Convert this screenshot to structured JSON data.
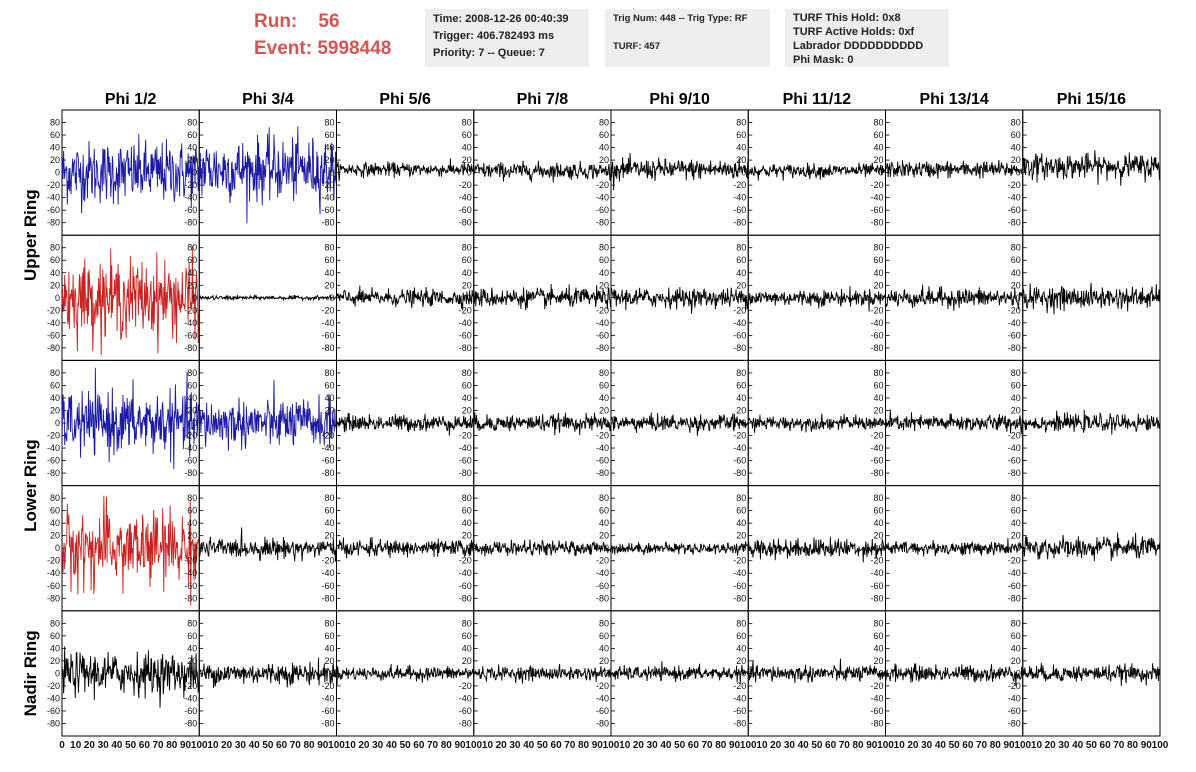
{
  "header": {
    "run_label": "Run:",
    "run_value": "56",
    "event_label": "Event:",
    "event_value": "5998448",
    "time": "Time: 2008-12-26 00:40:39",
    "trigger": "Trigger: 406.782493 ms",
    "priority": "Priority: 7 -- Queue: 7",
    "trig_num": "Trig Num: 448 -- Trig Type: RF",
    "turf": "TURF: 457",
    "turf_hold": "TURF This Hold: 0x8",
    "turf_active": "TURF Active Holds: 0xf",
    "labrador": "Labrador DDDDDDDDDD",
    "phi_mask": "Phi Mask: 0"
  },
  "colors": {
    "blue": "#1a1aa6",
    "red": "#cc2020",
    "black": "#000000",
    "accent_text": "#d9534f"
  },
  "chart_data": {
    "type": "line",
    "columns": [
      "Phi 1/2",
      "Phi 3/4",
      "Phi 5/6",
      "Phi 7/8",
      "Phi 9/10",
      "Phi 11/12",
      "Phi 13/14",
      "Phi 15/16"
    ],
    "ring_labels": [
      "Upper Ring",
      "Lower Ring",
      "Nadir Ring"
    ],
    "ring_rows": [
      [
        0,
        1
      ],
      [
        2,
        3
      ],
      [
        4
      ]
    ],
    "ylim": [
      -100,
      100
    ],
    "yticks": [
      80,
      60,
      40,
      20,
      0,
      -20,
      -40,
      -60,
      -80
    ],
    "xlim": [
      0,
      100
    ],
    "xticks": [
      10,
      20,
      30,
      40,
      50,
      60,
      70,
      80,
      90,
      100
    ],
    "first_xtick_label": "0",
    "panel_colors": [
      [
        "blue",
        "blue",
        "black",
        "black",
        "black",
        "black",
        "black",
        "black"
      ],
      [
        "red",
        "black",
        "black",
        "black",
        "black",
        "black",
        "black",
        "black"
      ],
      [
        "blue",
        "blue",
        "black",
        "black",
        "black",
        "black",
        "black",
        "black"
      ],
      [
        "red",
        "black",
        "black",
        "black",
        "black",
        "black",
        "black",
        "black"
      ],
      [
        "black",
        "black",
        "black",
        "black",
        "black",
        "black",
        "black",
        "black"
      ]
    ],
    "amplitudes": [
      [
        45,
        45,
        10,
        12,
        15,
        10,
        12,
        18
      ],
      [
        55,
        3,
        12,
        14,
        14,
        12,
        14,
        16
      ],
      [
        45,
        35,
        12,
        12,
        12,
        10,
        12,
        12
      ],
      [
        55,
        14,
        12,
        10,
        8,
        14,
        10,
        16
      ],
      [
        30,
        16,
        10,
        10,
        10,
        12,
        12,
        12
      ]
    ],
    "offsets": [
      [
        0,
        5,
        5,
        3,
        5,
        3,
        5,
        10
      ],
      [
        0,
        0,
        0,
        0,
        0,
        0,
        0,
        0
      ],
      [
        0,
        0,
        0,
        0,
        0,
        0,
        0,
        0
      ],
      [
        0,
        0,
        0,
        0,
        0,
        0,
        0,
        0
      ],
      [
        0,
        0,
        0,
        0,
        0,
        0,
        0,
        0
      ]
    ]
  }
}
